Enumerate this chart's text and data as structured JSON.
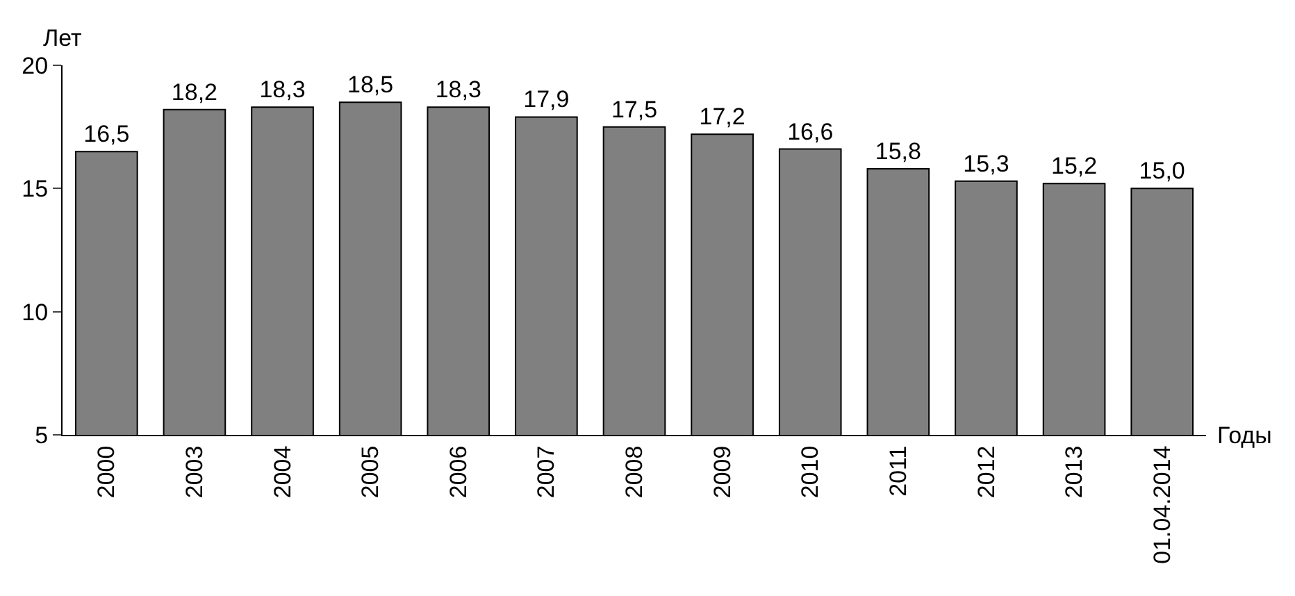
{
  "chart_data": {
    "type": "bar",
    "ylabel": "Лет",
    "xlabel": "Годы",
    "categories": [
      "2000",
      "2003",
      "2004",
      "2005",
      "2006",
      "2007",
      "2008",
      "2009",
      "2010",
      "2011",
      "2012",
      "2013",
      "01.04.2014"
    ],
    "values": [
      16.5,
      18.2,
      18.3,
      18.5,
      18.3,
      17.9,
      17.5,
      17.2,
      16.6,
      15.8,
      15.3,
      15.2,
      15.0
    ],
    "value_labels": [
      "16,5",
      "18,2",
      "18,3",
      "18,5",
      "18,3",
      "17,9",
      "17,5",
      "17,2",
      "16,6",
      "15,8",
      "15,3",
      "15,2",
      "15,0"
    ],
    "color": "#808080",
    "ylim": [
      5,
      20
    ],
    "yticks": [
      5,
      10,
      15,
      20
    ],
    "legend": false
  }
}
